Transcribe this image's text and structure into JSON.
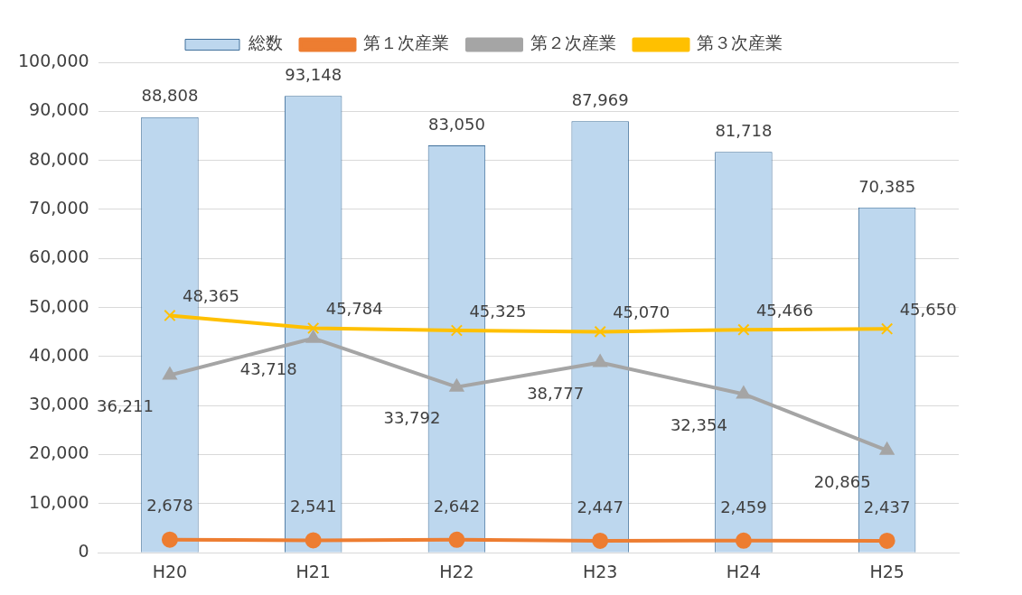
{
  "chart_data": {
    "type": "bar",
    "categories": [
      "H20",
      "H21",
      "H22",
      "H23",
      "H24",
      "H25"
    ],
    "series": [
      {
        "name": "総数",
        "color": "#bdd7ee",
        "values": [
          88808,
          93148,
          83050,
          87969,
          81718,
          70385
        ],
        "value_labels": [
          "88,808",
          "93,148",
          "83,050",
          "87,969",
          "81,718",
          "70,385"
        ]
      },
      {
        "name": "第１次産業",
        "type": "line",
        "color": "#ed7d31",
        "marker": "circle",
        "values": [
          2678,
          2541,
          2642,
          2447,
          2459,
          2437
        ],
        "value_labels": [
          "2,678",
          "2,541",
          "2,642",
          "2,447",
          "2,459",
          "2,437"
        ]
      },
      {
        "name": "第２次産業",
        "type": "line",
        "color": "#a5a5a5",
        "marker": "triangle",
        "values": [
          36211,
          43718,
          33792,
          38777,
          32354,
          20865
        ],
        "value_labels": [
          "36,211",
          "43,718",
          "33,792",
          "38,777",
          "32,354",
          "20,865"
        ]
      },
      {
        "name": "第３次産業",
        "type": "line",
        "color": "#ffc000",
        "marker": "cross",
        "values": [
          48365,
          45784,
          45325,
          45070,
          45466,
          45650
        ],
        "value_labels": [
          "48,365",
          "45,784",
          "45,325",
          "45,070",
          "45,466",
          "45,650"
        ]
      }
    ],
    "ylim": [
      0,
      100000
    ],
    "yticks": [
      {
        "value": 0,
        "label": "0"
      },
      {
        "value": 10000,
        "label": "10,000"
      },
      {
        "value": 20000,
        "label": "20,000"
      },
      {
        "value": 30000,
        "label": "30,000"
      },
      {
        "value": 40000,
        "label": "40,000"
      },
      {
        "value": 50000,
        "label": "50,000"
      },
      {
        "value": 60000,
        "label": "60,000"
      },
      {
        "value": 70000,
        "label": "70,000"
      },
      {
        "value": 80000,
        "label": "80,000"
      },
      {
        "value": 90000,
        "label": "90,000"
      },
      {
        "value": 100000,
        "label": "100,000"
      }
    ],
    "grid": "y",
    "legend": "top",
    "line_style": "solid"
  }
}
